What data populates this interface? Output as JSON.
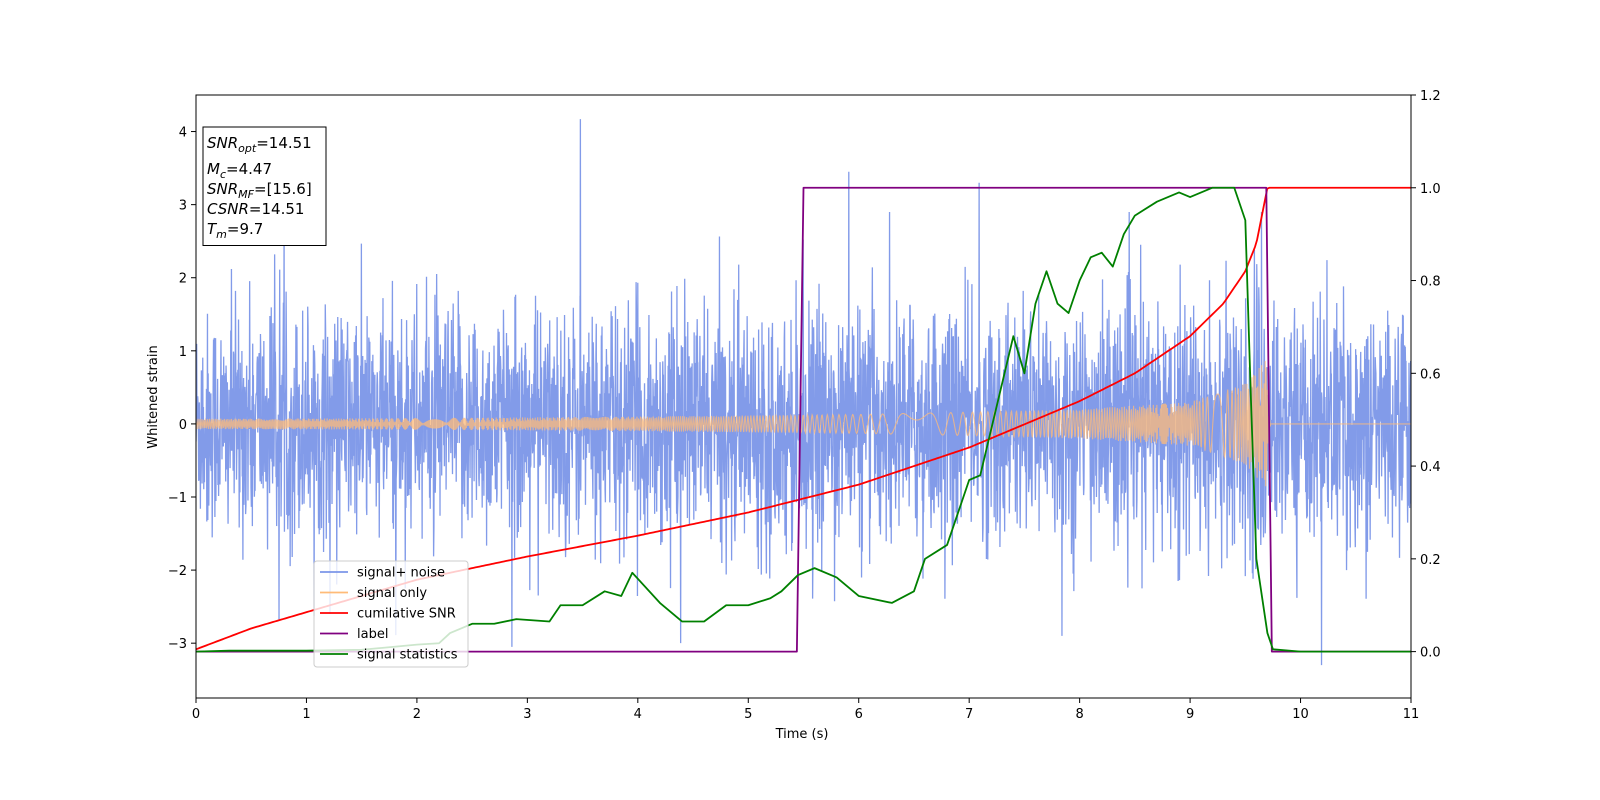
{
  "chart_data": {
    "type": "line",
    "title": "",
    "xlabel": "Time (s)",
    "ylabel": "Whitened strain",
    "xlim": [
      0,
      11
    ],
    "ylim_left": [
      -3.75,
      4.5
    ],
    "ylim_right": [
      -0.1,
      1.2
    ],
    "x_ticks": [
      "0",
      "1",
      "2",
      "3",
      "4",
      "5",
      "6",
      "7",
      "8",
      "9",
      "10",
      "11"
    ],
    "y_ticks_left": [
      "−3",
      "−2",
      "−1",
      "0",
      "1",
      "2",
      "3",
      "4"
    ],
    "y_ticks_right": [
      "0.0",
      "0.2",
      "0.4",
      "0.6",
      "0.8",
      "1.0",
      "1.2"
    ],
    "grid": false,
    "legend_position": "lower-left",
    "annotation": {
      "lines": [
        {
          "symbol": "SNR",
          "sub": "opt",
          "text": "=14.51"
        },
        {
          "symbol": "M",
          "sub": "c",
          "text": "=4.47"
        },
        {
          "symbol": "SNR",
          "sub": "MF",
          "text": "=[15.6]"
        },
        {
          "symbol": "CSNR",
          "sub": "",
          "text": "=14.51"
        },
        {
          "symbol": "T",
          "sub": "m",
          "text": "=9.7"
        }
      ]
    },
    "series": [
      {
        "name": "signal+ noise",
        "color": "#7b96e8",
        "axis": "left",
        "kind": "noise",
        "spread_approx": 1.25,
        "peaks": [
          [
            3.48,
            4.17
          ],
          [
            5.91,
            3.45
          ],
          [
            7.09,
            3.3
          ],
          [
            10.19,
            -3.3
          ],
          [
            2.86,
            -3.05
          ],
          [
            7.84,
            -2.9
          ]
        ]
      },
      {
        "name": "signal only",
        "color": "#ffbb78",
        "axis": "left",
        "kind": "chirp",
        "envelope": [
          [
            0,
            0.07
          ],
          [
            2,
            0.08
          ],
          [
            4,
            0.1
          ],
          [
            6,
            0.13
          ],
          [
            7,
            0.16
          ],
          [
            8,
            0.2
          ],
          [
            9,
            0.3
          ],
          [
            9.5,
            0.55
          ],
          [
            9.7,
            0.9
          ],
          [
            9.73,
            0.0
          ],
          [
            11,
            0.0
          ]
        ]
      },
      {
        "name": "cumilative SNR",
        "color": "#ff0000",
        "axis": "right",
        "points": [
          [
            0,
            0.005
          ],
          [
            0.5,
            0.05
          ],
          [
            1,
            0.085
          ],
          [
            2,
            0.155
          ],
          [
            3,
            0.205
          ],
          [
            4,
            0.25
          ],
          [
            5,
            0.3
          ],
          [
            6,
            0.36
          ],
          [
            7,
            0.44
          ],
          [
            8,
            0.54
          ],
          [
            8.5,
            0.6
          ],
          [
            9,
            0.68
          ],
          [
            9.3,
            0.75
          ],
          [
            9.5,
            0.82
          ],
          [
            9.6,
            0.88
          ],
          [
            9.7,
            1.0
          ],
          [
            11,
            1.0
          ]
        ]
      },
      {
        "name": "label",
        "color": "#800080",
        "axis": "right",
        "points": [
          [
            0,
            0.0
          ],
          [
            5.44,
            0.0
          ],
          [
            5.5,
            1.0
          ],
          [
            9.69,
            1.0
          ],
          [
            9.74,
            0.0
          ],
          [
            11,
            0.0
          ]
        ]
      },
      {
        "name": "signal statistics",
        "color": "#008000",
        "axis": "right",
        "points": [
          [
            0,
            0.0
          ],
          [
            0.3,
            0.002
          ],
          [
            1,
            0.002
          ],
          [
            1.5,
            0.004
          ],
          [
            2,
            0.015
          ],
          [
            2.2,
            0.018
          ],
          [
            2.3,
            0.04
          ],
          [
            2.5,
            0.06
          ],
          [
            2.7,
            0.06
          ],
          [
            2.9,
            0.07
          ],
          [
            3.2,
            0.065
          ],
          [
            3.3,
            0.1
          ],
          [
            3.5,
            0.1
          ],
          [
            3.7,
            0.13
          ],
          [
            3.85,
            0.12
          ],
          [
            3.95,
            0.17
          ],
          [
            4.2,
            0.105
          ],
          [
            4.4,
            0.065
          ],
          [
            4.6,
            0.065
          ],
          [
            4.8,
            0.1
          ],
          [
            5.0,
            0.1
          ],
          [
            5.2,
            0.115
          ],
          [
            5.3,
            0.13
          ],
          [
            5.45,
            0.165
          ],
          [
            5.6,
            0.18
          ],
          [
            5.8,
            0.16
          ],
          [
            6.0,
            0.12
          ],
          [
            6.3,
            0.105
          ],
          [
            6.5,
            0.13
          ],
          [
            6.6,
            0.2
          ],
          [
            6.8,
            0.23
          ],
          [
            6.9,
            0.3
          ],
          [
            7.0,
            0.37
          ],
          [
            7.1,
            0.38
          ],
          [
            7.2,
            0.48
          ],
          [
            7.3,
            0.58
          ],
          [
            7.4,
            0.68
          ],
          [
            7.5,
            0.6
          ],
          [
            7.6,
            0.75
          ],
          [
            7.7,
            0.82
          ],
          [
            7.8,
            0.75
          ],
          [
            7.9,
            0.73
          ],
          [
            8.0,
            0.8
          ],
          [
            8.1,
            0.85
          ],
          [
            8.2,
            0.86
          ],
          [
            8.3,
            0.83
          ],
          [
            8.4,
            0.9
          ],
          [
            8.5,
            0.94
          ],
          [
            8.7,
            0.97
          ],
          [
            8.9,
            0.99
          ],
          [
            9.0,
            0.98
          ],
          [
            9.2,
            1.0
          ],
          [
            9.4,
            1.0
          ],
          [
            9.5,
            0.93
          ],
          [
            9.55,
            0.55
          ],
          [
            9.6,
            0.2
          ],
          [
            9.7,
            0.04
          ],
          [
            9.75,
            0.005
          ],
          [
            10,
            0.0
          ],
          [
            11,
            0.0
          ]
        ]
      }
    ]
  }
}
